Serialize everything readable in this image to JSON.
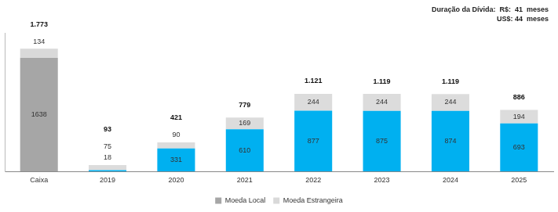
{
  "chart_data": {
    "type": "bar",
    "categories": [
      "Caixa",
      "2019",
      "2020",
      "2021",
      "2022",
      "2023",
      "2024",
      "2025"
    ],
    "series": [
      {
        "name": "Moeda Local",
        "colors": [
          "#a6a6a6",
          "#00b0f0",
          "#00b0f0",
          "#00b0f0",
          "#00b0f0",
          "#00b0f0",
          "#00b0f0",
          "#00b0f0"
        ],
        "values": [
          1638,
          18,
          331,
          610,
          877,
          875,
          874,
          693
        ]
      },
      {
        "name": "Moeda Estrangeira",
        "colors": [
          "#d9d9d9",
          "#dcdcdc",
          "#dcdcdc",
          "#dcdcdc",
          "#dcdcdc",
          "#dcdcdc",
          "#dcdcdc",
          "#dcdcdc"
        ],
        "values": [
          134,
          75,
          90,
          169,
          244,
          244,
          244,
          194
        ]
      }
    ],
    "totals": [
      1773,
      93,
      421,
      779,
      1121,
      1119,
      1119,
      886
    ],
    "total_labels": [
      "1.773",
      "93",
      "421",
      "779",
      "1.121",
      "1.119",
      "1.119",
      "886"
    ],
    "annotations": [
      "Duração da Dívida:  R$:  41  meses",
      "US$: 44  meses"
    ],
    "ylim": [
      0,
      2000
    ],
    "stacked": true,
    "data_labels": true,
    "grid": false,
    "tick_labels": "x",
    "legend": "bottom"
  }
}
